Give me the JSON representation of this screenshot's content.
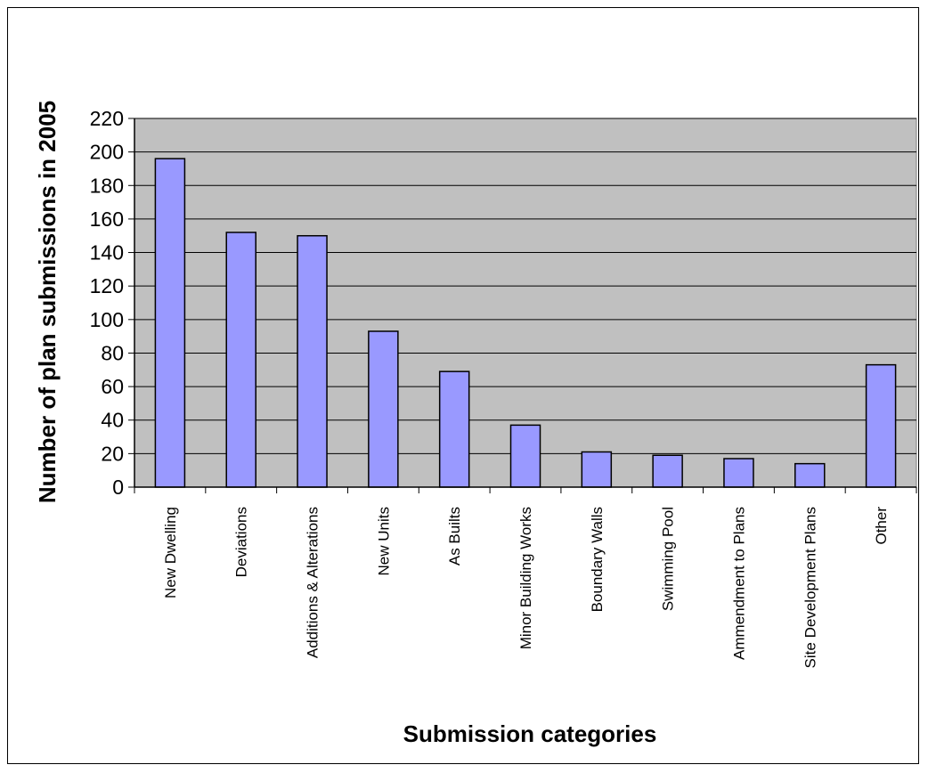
{
  "chart_data": {
    "type": "bar",
    "title": "",
    "xlabel": "Submission categories",
    "ylabel": "Number of plan submissions in 2005",
    "categories": [
      "New Dwelling",
      "Deviations",
      "Additions & Alterations",
      "New Units",
      "As Builts",
      "Minor Building Works",
      "Boundary Walls",
      "Swimming Pool",
      "Ammendment to Plans",
      "Site Development Plans",
      "Other"
    ],
    "values": [
      196,
      152,
      150,
      93,
      69,
      37,
      21,
      19,
      17,
      14,
      73
    ],
    "ylim": [
      0,
      220
    ],
    "yticks": [
      0,
      20,
      40,
      60,
      80,
      100,
      120,
      140,
      160,
      180,
      200,
      220
    ],
    "grid": true,
    "legend": "none",
    "colors": {
      "bar_fill": "#9999ff",
      "bar_stroke": "#000000",
      "plot_background": "#c0c0c0",
      "gridline": "#000000"
    }
  }
}
